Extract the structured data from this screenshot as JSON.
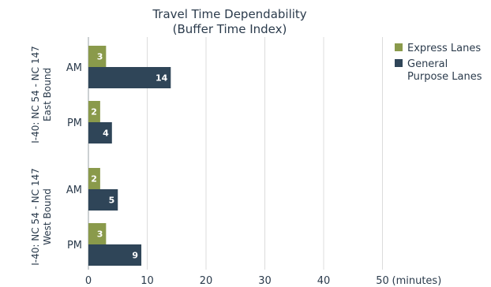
{
  "chart_data": {
    "type": "bar",
    "orientation": "horizontal",
    "title": "Travel Time Dependability",
    "subtitle": "(Buffer Time Index)",
    "xlabel": "(minutes)",
    "x_ticks": [
      0,
      10,
      20,
      30,
      40,
      50
    ],
    "xlim": [
      0,
      50
    ],
    "grid": true,
    "legend_position": "top-right",
    "groups": [
      {
        "label_line1": "I-40: NC 54 - NC 147",
        "label_line2": "East Bound",
        "categories": [
          "AM",
          "PM"
        ]
      },
      {
        "label_line1": "I-40: NC 54 - NC 147",
        "label_line2": "West Bound",
        "categories": [
          "AM",
          "PM"
        ]
      }
    ],
    "series": [
      {
        "name": "Express Lanes",
        "color": "#8a9a4b",
        "values": [
          3,
          2,
          2,
          3
        ]
      },
      {
        "name": "General Purpose Lanes",
        "color": "#2f4558",
        "values": [
          14,
          4,
          5,
          9
        ]
      }
    ]
  }
}
